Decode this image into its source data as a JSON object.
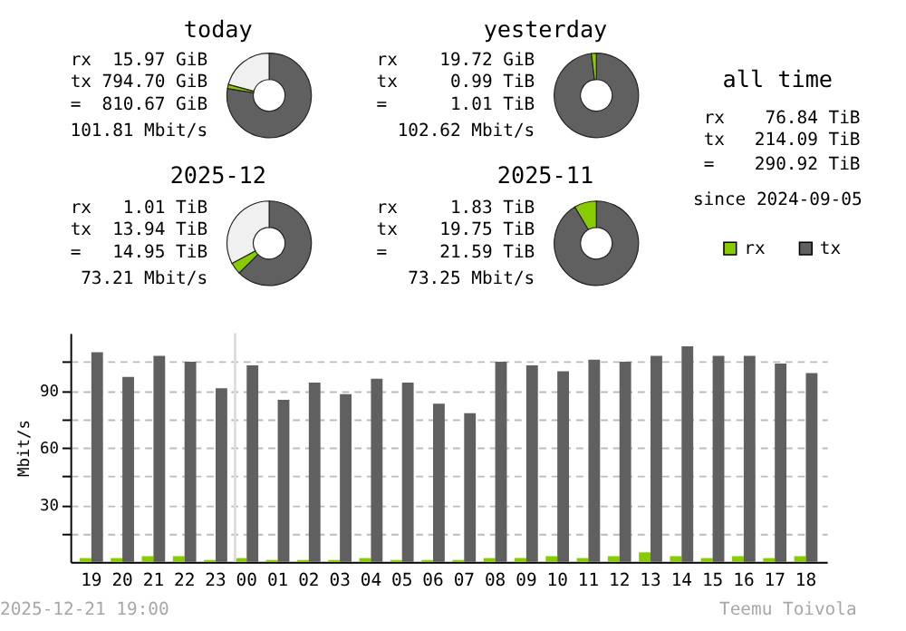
{
  "chart_data": [
    {
      "type": "donut",
      "title": "today",
      "categories": [
        null,
        null,
        null
      ],
      "values": [
        77.6,
        1.6,
        20.8
      ],
      "colors": [
        "#606060",
        "#88cc00",
        "#f0f0f0"
      ],
      "annotations": [
        "rx",
        "15.97 GiB",
        "tx",
        "794.70 GiB",
        "=",
        "810.67 GiB",
        "101.81 Mbit/s"
      ]
    },
    {
      "type": "donut",
      "title": "yesterday",
      "categories": [
        null,
        null
      ],
      "values": [
        98.1,
        1.9
      ],
      "colors": [
        "#606060",
        "#88cc00"
      ],
      "annotations": [
        "rx",
        "19.72 GiB",
        "tx",
        "0.99 TiB",
        "=",
        "1.01 TiB",
        "102.62 Mbit/s"
      ]
    },
    {
      "type": "other",
      "title": "all time",
      "annotations": [
        "rx",
        "76.84 TiB",
        "tx",
        "214.09 TiB",
        "=",
        "290.92 TiB",
        "since 2024-09-05"
      ]
    },
    {
      "type": "donut",
      "title": "2025-12",
      "categories": [
        null,
        null,
        null
      ],
      "values": [
        62.6,
        4.5,
        32.9
      ],
      "colors": [
        "#606060",
        "#88cc00",
        "#f0f0f0"
      ],
      "annotations": [
        "rx",
        "1.01 TiB",
        "tx",
        "13.94 TiB",
        "=",
        "14.95 TiB",
        "73.21 Mbit/s"
      ]
    },
    {
      "type": "donut",
      "title": "2025-11",
      "categories": [
        null,
        null
      ],
      "values": [
        91.5,
        8.5
      ],
      "colors": [
        "#606060",
        "#88cc00"
      ],
      "annotations": [
        "rx",
        "1.83 TiB",
        "tx",
        "19.75 TiB",
        "=",
        "21.59 TiB",
        "73.25 Mbit/s"
      ]
    },
    {
      "type": "bar",
      "ylabel": "Mbit/s",
      "categories": [
        "19",
        "20",
        "21",
        "22",
        "23",
        "00",
        "01",
        "02",
        "03",
        "04",
        "05",
        "06",
        "07",
        "08",
        "09",
        "10",
        "11",
        "12",
        "13",
        "14",
        "15",
        "16",
        "17",
        "18"
      ],
      "series": [
        {
          "name": "rx",
          "color": "#88cc00",
          "values": [
            2,
            2,
            3,
            3,
            1,
            2,
            1,
            1,
            1,
            2,
            1,
            1,
            1,
            2,
            2,
            3,
            2,
            3,
            5,
            3,
            2,
            3,
            2,
            3
          ]
        },
        {
          "name": "tx",
          "color": "#606060",
          "values": [
            110,
            97,
            108,
            105,
            91,
            103,
            85,
            94,
            88,
            96,
            94,
            83,
            78,
            105,
            103,
            100,
            106,
            105,
            108,
            113,
            108,
            108,
            104,
            99
          ]
        }
      ],
      "ylim": [
        0,
        120
      ],
      "yticks": [
        {
          "value": 15,
          "label": null
        },
        30,
        {
          "value": 45,
          "label": null
        },
        60,
        {
          "value": 75,
          "label": null
        },
        90,
        {
          "value": 105,
          "label": null
        }
      ],
      "grid": "y",
      "legend": "top right",
      "ref_lines": [
        {
          "axis": "x",
          "value": "00",
          "color": "#dddddd"
        }
      ],
      "annotations": [
        "2025-12-21 19:00",
        "Teemu Toivola"
      ]
    }
  ]
}
